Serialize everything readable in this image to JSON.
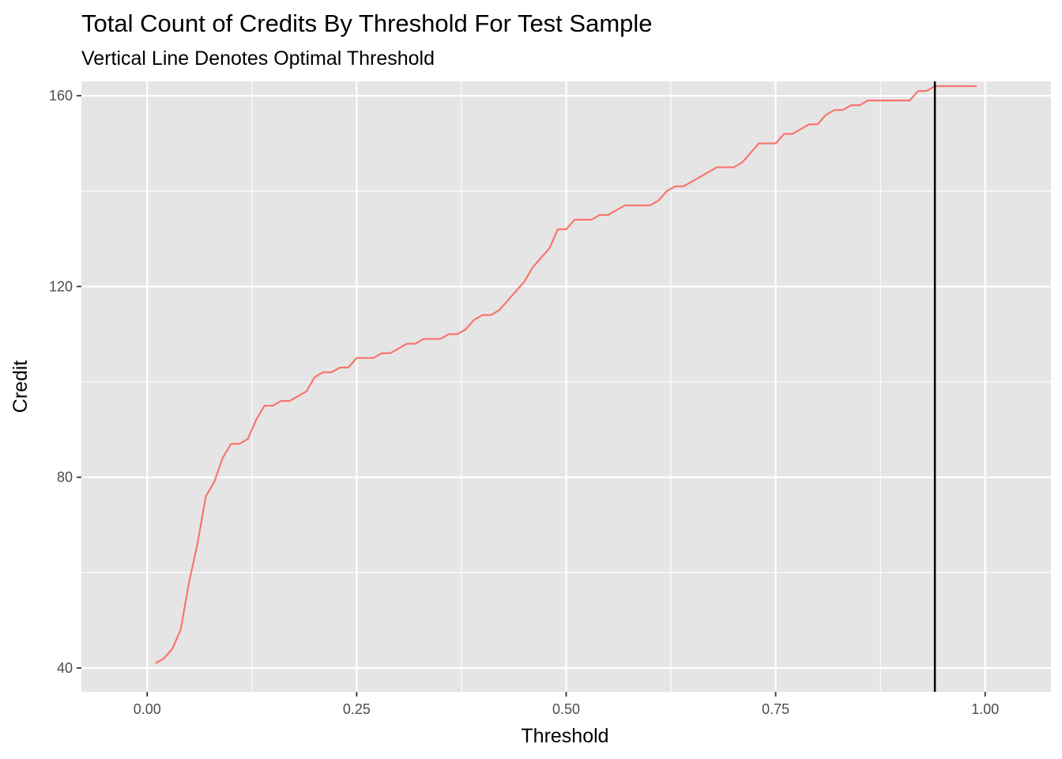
{
  "chart_data": {
    "type": "line",
    "title": "Total Count of Credits By Threshold For Test Sample",
    "subtitle": "Vertical Line Denotes Optimal Threshold",
    "xlabel": "Threshold",
    "ylabel": "Credit",
    "xlim": [
      -0.0785,
      1.0785
    ],
    "ylim": [
      35,
      163
    ],
    "x_ticks": [
      0.0,
      0.25,
      0.5,
      0.75,
      1.0
    ],
    "x_tick_labels": [
      "0.00",
      "0.25",
      "0.50",
      "0.75",
      "1.00"
    ],
    "y_ticks": [
      40,
      80,
      120,
      160
    ],
    "y_tick_labels": [
      "40",
      "80",
      "120",
      "160"
    ],
    "grid": true,
    "legend": "none",
    "colors": {
      "panel": "#e5e5e5",
      "grid": "#ffffff",
      "line": "#f8766d",
      "vline": "#000000"
    },
    "optimal_threshold": 0.94,
    "series": [
      {
        "x": [
          0.01,
          0.02,
          0.03,
          0.04,
          0.05,
          0.06,
          0.07,
          0.08,
          0.09,
          0.1,
          0.11,
          0.12,
          0.13,
          0.14,
          0.15,
          0.16,
          0.17,
          0.18,
          0.19,
          0.2,
          0.21,
          0.22,
          0.23,
          0.24,
          0.25,
          0.26,
          0.27,
          0.28,
          0.29,
          0.3,
          0.31,
          0.32,
          0.33,
          0.34,
          0.35,
          0.36,
          0.37,
          0.38,
          0.39,
          0.4,
          0.41,
          0.42,
          0.43,
          0.44,
          0.45,
          0.46,
          0.47,
          0.48,
          0.49,
          0.5,
          0.51,
          0.52,
          0.53,
          0.54,
          0.55,
          0.56,
          0.57,
          0.58,
          0.59,
          0.6,
          0.61,
          0.62,
          0.63,
          0.64,
          0.65,
          0.66,
          0.67,
          0.68,
          0.69,
          0.7,
          0.71,
          0.72,
          0.73,
          0.74,
          0.75,
          0.76,
          0.77,
          0.78,
          0.79,
          0.8,
          0.81,
          0.82,
          0.83,
          0.84,
          0.85,
          0.86,
          0.87,
          0.88,
          0.89,
          0.9,
          0.91,
          0.92,
          0.93,
          0.94,
          0.95,
          0.96,
          0.97,
          0.98,
          0.99
        ],
        "values": [
          41,
          42,
          44,
          48,
          58,
          66,
          76,
          79,
          84,
          87,
          87,
          88,
          92,
          95,
          95,
          96,
          96,
          97,
          98,
          101,
          102,
          102,
          103,
          103,
          105,
          105,
          105,
          106,
          106,
          107,
          108,
          108,
          109,
          109,
          109,
          110,
          110,
          111,
          113,
          114,
          114,
          115,
          117,
          119,
          121,
          124,
          126,
          128,
          132,
          132,
          134,
          134,
          134,
          135,
          135,
          136,
          137,
          137,
          137,
          137,
          138,
          140,
          141,
          141,
          142,
          143,
          144,
          145,
          145,
          145,
          146,
          148,
          150,
          150,
          150,
          152,
          152,
          153,
          154,
          154,
          156,
          157,
          157,
          158,
          158,
          159,
          159,
          159,
          159,
          159,
          159,
          161,
          161,
          162,
          162,
          162,
          162,
          162,
          162
        ]
      }
    ]
  }
}
